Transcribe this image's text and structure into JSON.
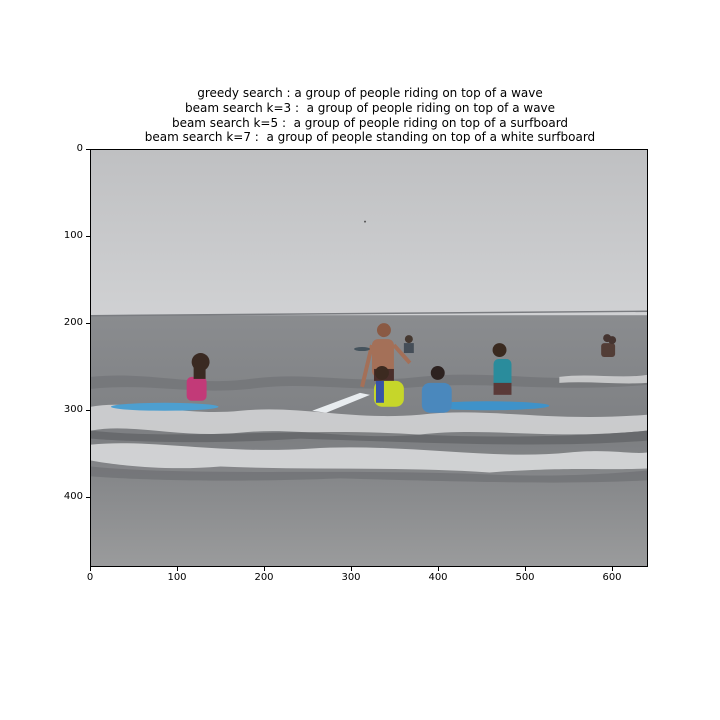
{
  "title_lines": [
    "greedy search : a group of people riding on top of a wave",
    "beam search k=3 :  a group of people riding on top of a wave",
    "beam search k=5 :  a group of people riding on top of a surfboard",
    "beam search k=7 :  a group of people standing on top of a white surfboard"
  ],
  "axes": {
    "yticks": [
      "0",
      "100",
      "200",
      "300",
      "400"
    ],
    "xticks": [
      "0",
      "100",
      "200",
      "300",
      "400",
      "500",
      "600"
    ]
  },
  "image": {
    "subject": "children with surfboards in shallow ocean waves under overcast sky",
    "sky_color": "#c9cacc",
    "sea_color": "#8d8e8f"
  }
}
